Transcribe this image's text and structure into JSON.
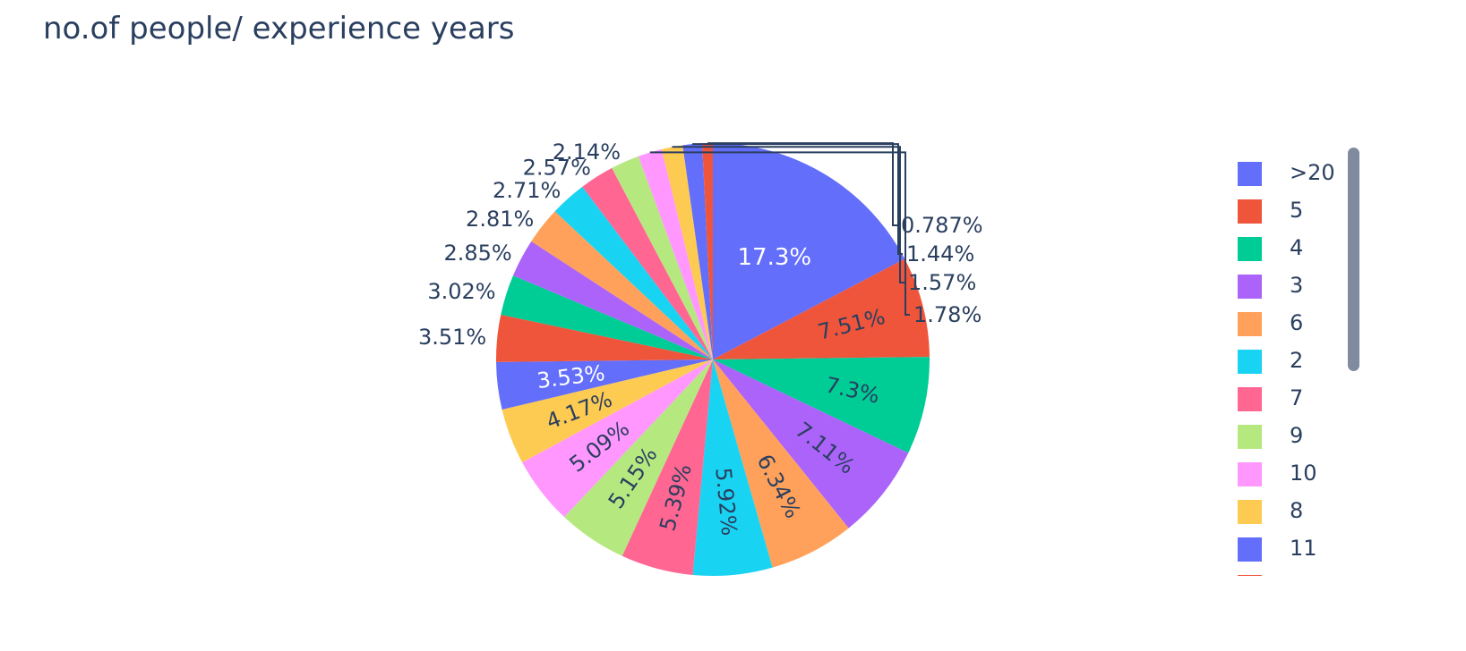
{
  "chart_data": {
    "type": "pie",
    "title": "no.of people/ experience years",
    "direction": "clockwise",
    "legend_placement": "right",
    "slices": [
      {
        "label": ">20",
        "percent": 17.3,
        "text": "17.3%",
        "color": "#636efa"
      },
      {
        "label": "5",
        "percent": 7.51,
        "text": "7.51%",
        "color": "#EF553B"
      },
      {
        "label": "4",
        "percent": 7.3,
        "text": "7.3%",
        "color": "#00cc96"
      },
      {
        "label": "3",
        "percent": 7.11,
        "text": "7.11%",
        "color": "#ab63fa"
      },
      {
        "label": "6",
        "percent": 6.34,
        "text": "6.34%",
        "color": "#FFA15A"
      },
      {
        "label": "2",
        "percent": 5.92,
        "text": "5.92%",
        "color": "#19d3f3"
      },
      {
        "label": "7",
        "percent": 5.39,
        "text": "5.39%",
        "color": "#FF6692"
      },
      {
        "label": "9",
        "percent": 5.15,
        "text": "5.15%",
        "color": "#B6E880"
      },
      {
        "label": "10",
        "percent": 5.09,
        "text": "5.09%",
        "color": "#FF97FF"
      },
      {
        "label": "8",
        "percent": 4.17,
        "text": "4.17%",
        "color": "#FECB52"
      },
      {
        "label": "11",
        "percent": 3.53,
        "text": "3.53%",
        "color": "#636efa"
      },
      {
        "label": "",
        "percent": 3.51,
        "text": "3.51%",
        "color": "#EF553B"
      },
      {
        "label": "",
        "percent": 3.02,
        "text": "3.02%",
        "color": "#00cc96"
      },
      {
        "label": "",
        "percent": 2.85,
        "text": "2.85%",
        "color": "#ab63fa"
      },
      {
        "label": "",
        "percent": 2.81,
        "text": "2.81%",
        "color": "#FFA15A"
      },
      {
        "label": "",
        "percent": 2.71,
        "text": "2.71%",
        "color": "#19d3f3"
      },
      {
        "label": "",
        "percent": 2.57,
        "text": "2.57%",
        "color": "#FF6692"
      },
      {
        "label": "",
        "percent": 2.14,
        "text": "2.14%",
        "color": "#B6E880"
      },
      {
        "label": "",
        "percent": 1.78,
        "text": "1.78%",
        "color": "#FF97FF"
      },
      {
        "label": "",
        "percent": 1.57,
        "text": "1.57%",
        "color": "#FECB52"
      },
      {
        "label": "",
        "percent": 1.44,
        "text": "1.44%",
        "color": "#636efa"
      },
      {
        "label": "",
        "percent": 0.787,
        "text": "0.787%",
        "color": "#EF553B"
      }
    ]
  }
}
